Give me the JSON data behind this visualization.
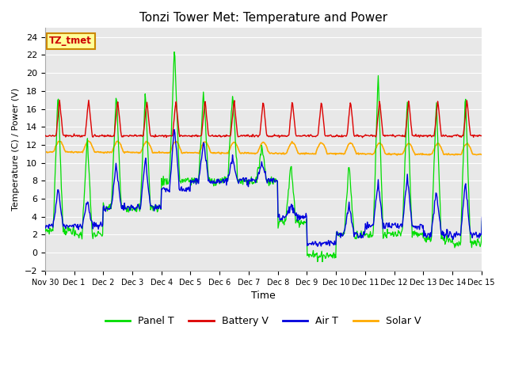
{
  "title": "Tonzi Tower Met: Temperature and Power",
  "xlabel": "Time",
  "ylabel": "Temperature (C) / Power (V)",
  "ylim": [
    -2,
    25
  ],
  "yticks": [
    -2,
    0,
    2,
    4,
    6,
    8,
    10,
    12,
    14,
    16,
    18,
    20,
    22,
    24
  ],
  "xtick_labels": [
    "Nov 30",
    "Dec 1",
    "Dec 2",
    "Dec 3",
    "Dec 4",
    "Dec 5",
    "Dec 6",
    "Dec 7",
    "Dec 8",
    "Dec 9",
    "Dec 10",
    "Dec 11",
    "Dec 12",
    "Dec 13",
    "Dec 14",
    "Dec 15"
  ],
  "colors": {
    "panel_t": "#00dd00",
    "battery_v": "#dd0000",
    "air_t": "#0000dd",
    "solar_v": "#ffaa00"
  },
  "legend_labels": [
    "Panel T",
    "Battery V",
    "Air T",
    "Solar V"
  ],
  "bg_color": "#e8e8e8",
  "annotation_text": "TZ_tmet",
  "annotation_bg": "#ffff99",
  "annotation_border": "#cc8800"
}
